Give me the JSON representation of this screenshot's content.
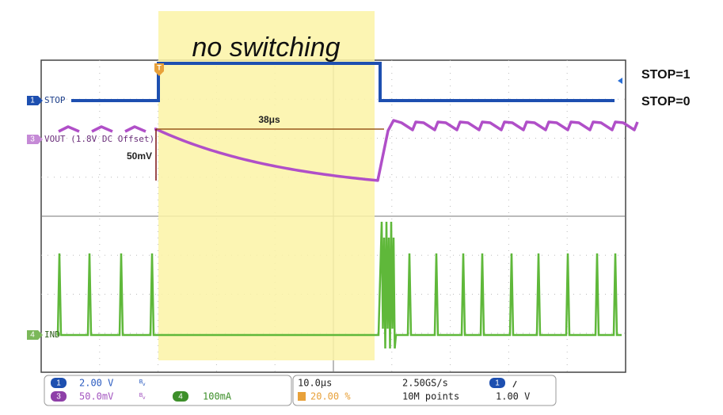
{
  "title": "no switching",
  "right_labels": [
    "STOP=1",
    "STOP=0"
  ],
  "trigger_marker": "T",
  "channels": {
    "stop": {
      "marker": "1",
      "label": "STOP"
    },
    "vout": {
      "marker": "3",
      "label": "VOUT (1.8V DC Offset)"
    },
    "ind": {
      "marker": "4",
      "label": "IND"
    }
  },
  "annotations": {
    "time": "38μs",
    "amplitude": "50mV"
  },
  "status": {
    "ch1": {
      "badge": "1",
      "scale": "2.00 V"
    },
    "ch3": {
      "badge": "3",
      "scale": "50.0mV"
    },
    "ch4": {
      "badge": "4",
      "scale": "100mA"
    },
    "timebase": "10.0μs",
    "trigger_position": "20.00 %",
    "sample_rate": "2.50GS/s",
    "record_length": "10M points",
    "trigger": {
      "badge": "1",
      "level": "1.00 V"
    }
  }
}
